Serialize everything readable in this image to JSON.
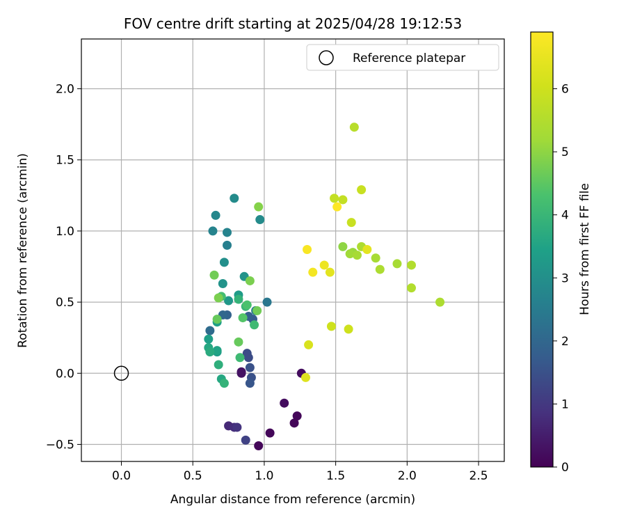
{
  "chart_data": {
    "type": "scatter",
    "title": "FOV centre drift starting at 2025/04/28 19:12:53",
    "xlabel": "Angular distance from reference (arcmin)",
    "ylabel": "Rotation from reference (arcmin)",
    "xlim": [
      -0.28,
      2.68
    ],
    "ylim": [
      -0.62,
      2.35
    ],
    "xticks": [
      0.0,
      0.5,
      1.0,
      1.5,
      2.0,
      2.5
    ],
    "xtick_labels": [
      "0.0",
      "0.5",
      "1.0",
      "1.5",
      "2.0",
      "2.5"
    ],
    "yticks": [
      -0.5,
      0.0,
      0.5,
      1.0,
      1.5,
      2.0
    ],
    "ytick_labels": [
      "−0.5",
      "0.0",
      "0.5",
      "1.0",
      "1.5",
      "2.0"
    ],
    "grid": true,
    "legend": {
      "placement": "top-right",
      "entries": [
        "Reference platepar"
      ]
    },
    "colorbar": {
      "label": "Hours from first FF file",
      "range": [
        0,
        6.9
      ],
      "ticks": [
        0,
        1,
        2,
        3,
        4,
        5,
        6
      ],
      "tick_labels": [
        "0",
        "1",
        "2",
        "3",
        "4",
        "5",
        "6"
      ],
      "colormap": "viridis"
    },
    "reference_point": {
      "x": 0.0,
      "y": 0.0
    },
    "points": [
      {
        "x": 0.96,
        "y": -0.51,
        "h": 0.1
      },
      {
        "x": 1.04,
        "y": -0.42,
        "h": 0.1
      },
      {
        "x": 1.21,
        "y": -0.35,
        "h": 0.1
      },
      {
        "x": 1.23,
        "y": -0.3,
        "h": 0.1
      },
      {
        "x": 1.14,
        "y": -0.21,
        "h": 0.2
      },
      {
        "x": 1.26,
        "y": 0.0,
        "h": 0.2
      },
      {
        "x": 0.84,
        "y": 0.01,
        "h": 0.3
      },
      {
        "x": 0.84,
        "y": 0.0,
        "h": 0.3
      },
      {
        "x": 0.75,
        "y": -0.37,
        "h": 0.7
      },
      {
        "x": 0.79,
        "y": -0.38,
        "h": 0.8
      },
      {
        "x": 0.81,
        "y": -0.38,
        "h": 0.9
      },
      {
        "x": 0.87,
        "y": -0.47,
        "h": 1.2
      },
      {
        "x": 0.88,
        "y": 0.14,
        "h": 1.4
      },
      {
        "x": 0.89,
        "y": 0.11,
        "h": 1.4
      },
      {
        "x": 0.9,
        "y": 0.04,
        "h": 1.5
      },
      {
        "x": 0.91,
        "y": -0.03,
        "h": 1.5
      },
      {
        "x": 0.9,
        "y": -0.07,
        "h": 1.6
      },
      {
        "x": 0.92,
        "y": 0.38,
        "h": 1.7
      },
      {
        "x": 0.89,
        "y": 0.4,
        "h": 1.8
      },
      {
        "x": 0.74,
        "y": 0.41,
        "h": 1.9
      },
      {
        "x": 0.71,
        "y": 0.41,
        "h": 2.0
      },
      {
        "x": 0.62,
        "y": 0.3,
        "h": 2.1
      },
      {
        "x": 1.02,
        "y": 0.5,
        "h": 2.4
      },
      {
        "x": 0.94,
        "y": 0.44,
        "h": 2.5
      },
      {
        "x": 0.74,
        "y": 0.9,
        "h": 2.6
      },
      {
        "x": 0.74,
        "y": 0.99,
        "h": 2.7
      },
      {
        "x": 0.64,
        "y": 1.0,
        "h": 2.7
      },
      {
        "x": 0.66,
        "y": 1.11,
        "h": 2.8
      },
      {
        "x": 0.79,
        "y": 1.23,
        "h": 2.9
      },
      {
        "x": 0.97,
        "y": 1.08,
        "h": 2.9
      },
      {
        "x": 0.72,
        "y": 0.78,
        "h": 3.0
      },
      {
        "x": 0.86,
        "y": 0.68,
        "h": 3.1
      },
      {
        "x": 0.71,
        "y": 0.63,
        "h": 3.1
      },
      {
        "x": 0.75,
        "y": 0.51,
        "h": 3.2
      },
      {
        "x": 0.82,
        "y": 0.55,
        "h": 3.3
      },
      {
        "x": 0.67,
        "y": 0.36,
        "h": 3.4
      },
      {
        "x": 0.61,
        "y": 0.24,
        "h": 3.4
      },
      {
        "x": 0.67,
        "y": 0.15,
        "h": 3.3
      },
      {
        "x": 0.67,
        "y": 0.16,
        "h": 3.5
      },
      {
        "x": 0.61,
        "y": 0.18,
        "h": 3.6
      },
      {
        "x": 0.62,
        "y": 0.15,
        "h": 3.7
      },
      {
        "x": 0.68,
        "y": 0.06,
        "h": 3.8
      },
      {
        "x": 0.7,
        "y": -0.04,
        "h": 3.6
      },
      {
        "x": 0.72,
        "y": -0.07,
        "h": 3.9
      },
      {
        "x": 0.82,
        "y": 0.52,
        "h": 3.9
      },
      {
        "x": 0.87,
        "y": 0.47,
        "h": 4.0
      },
      {
        "x": 0.93,
        "y": 0.34,
        "h": 4.1
      },
      {
        "x": 0.83,
        "y": 0.11,
        "h": 4.1
      },
      {
        "x": 0.7,
        "y": 0.54,
        "h": 4.2
      },
      {
        "x": 0.88,
        "y": 0.48,
        "h": 4.3
      },
      {
        "x": 0.85,
        "y": 0.39,
        "h": 4.4
      },
      {
        "x": 0.67,
        "y": 0.38,
        "h": 4.6
      },
      {
        "x": 0.82,
        "y": 0.22,
        "h": 4.6
      },
      {
        "x": 0.65,
        "y": 0.69,
        "h": 4.7
      },
      {
        "x": 0.68,
        "y": 0.53,
        "h": 4.8
      },
      {
        "x": 0.9,
        "y": 0.65,
        "h": 4.8
      },
      {
        "x": 0.95,
        "y": 0.44,
        "h": 4.7
      },
      {
        "x": 0.96,
        "y": 1.17,
        "h": 4.9
      },
      {
        "x": 1.55,
        "y": 0.89,
        "h": 5.0
      },
      {
        "x": 1.62,
        "y": 0.85,
        "h": 5.1
      },
      {
        "x": 1.6,
        "y": 0.84,
        "h": 5.2
      },
      {
        "x": 1.65,
        "y": 0.83,
        "h": 5.3
      },
      {
        "x": 1.68,
        "y": 0.89,
        "h": 5.4
      },
      {
        "x": 1.78,
        "y": 0.81,
        "h": 5.3
      },
      {
        "x": 1.81,
        "y": 0.73,
        "h": 5.4
      },
      {
        "x": 1.93,
        "y": 0.77,
        "h": 5.3
      },
      {
        "x": 2.03,
        "y": 0.76,
        "h": 5.5
      },
      {
        "x": 2.03,
        "y": 0.6,
        "h": 5.5
      },
      {
        "x": 2.23,
        "y": 0.5,
        "h": 5.4
      },
      {
        "x": 1.63,
        "y": 1.73,
        "h": 5.6
      },
      {
        "x": 1.49,
        "y": 1.23,
        "h": 5.8
      },
      {
        "x": 1.55,
        "y": 1.22,
        "h": 5.8
      },
      {
        "x": 1.68,
        "y": 1.29,
        "h": 5.9
      },
      {
        "x": 1.61,
        "y": 1.06,
        "h": 5.9
      },
      {
        "x": 1.47,
        "y": 0.33,
        "h": 6.0
      },
      {
        "x": 1.59,
        "y": 0.31,
        "h": 6.0
      },
      {
        "x": 1.31,
        "y": 0.2,
        "h": 6.2
      },
      {
        "x": 1.29,
        "y": -0.03,
        "h": 6.3
      },
      {
        "x": 1.46,
        "y": 0.71,
        "h": 6.4
      },
      {
        "x": 1.72,
        "y": 0.87,
        "h": 6.4
      },
      {
        "x": 1.42,
        "y": 0.76,
        "h": 6.6
      },
      {
        "x": 1.34,
        "y": 0.71,
        "h": 6.7
      },
      {
        "x": 1.3,
        "y": 0.87,
        "h": 6.8
      },
      {
        "x": 1.51,
        "y": 1.17,
        "h": 6.9
      }
    ]
  }
}
